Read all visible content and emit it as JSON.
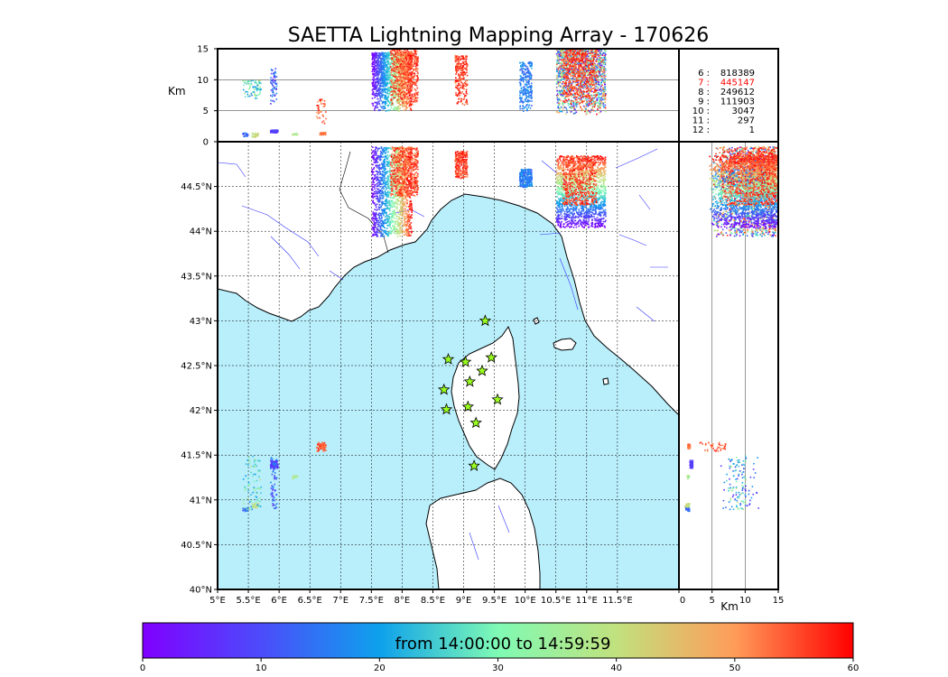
{
  "chart_data": {
    "type": "scatter",
    "title": "SAETTA Lightning Mapping Array - 170626",
    "map": {
      "lon_range": [
        5,
        12.5
      ],
      "lat_range": [
        40,
        45
      ],
      "x_ticks": [
        5,
        5.5,
        6,
        6.5,
        7,
        7.5,
        8,
        8.5,
        9,
        9.5,
        10,
        10.5,
        11,
        11.5
      ],
      "x_tick_labels": [
        "5°E",
        "5.5°E",
        "6°E",
        "6.5°E",
        "7°E",
        "7.5°E",
        "8°E",
        "8.5°E",
        "9°E",
        "9.5°E",
        "10°E",
        "10.5°E",
        "11°E",
        "11.5°E"
      ],
      "y_ticks": [
        40,
        40.5,
        41,
        41.5,
        42,
        42.5,
        43,
        43.5,
        44,
        44.5
      ],
      "y_tick_labels": [
        "40°N",
        "40.5°N",
        "41°N",
        "41.5°N",
        "42°N",
        "42.5°N",
        "43°N",
        "43.5°N",
        "44°N",
        "44.5°N"
      ],
      "grid": true,
      "sea_color": "#b9eefb"
    },
    "altitude_top": {
      "ylabel": "Km",
      "ylim": [
        0,
        15
      ],
      "y_ticks": [
        0,
        5,
        10,
        15
      ],
      "y_tick_labels": [
        "0",
        "5",
        "10",
        "15"
      ]
    },
    "altitude_side": {
      "xlabel": "Km",
      "xlim": [
        0,
        15
      ],
      "x_ticks": [
        0,
        5,
        10,
        15
      ],
      "x_tick_labels": [
        "0",
        "5",
        "10",
        "15"
      ]
    },
    "stations": [
      {
        "lon": 9.35,
        "lat": 43.0
      },
      {
        "lon": 8.75,
        "lat": 42.57
      },
      {
        "lon": 9.03,
        "lat": 42.54
      },
      {
        "lon": 9.45,
        "lat": 42.59
      },
      {
        "lon": 9.3,
        "lat": 42.44
      },
      {
        "lon": 9.1,
        "lat": 42.32
      },
      {
        "lon": 8.68,
        "lat": 42.23
      },
      {
        "lon": 9.55,
        "lat": 42.12
      },
      {
        "lon": 8.72,
        "lat": 42.01
      },
      {
        "lon": 9.07,
        "lat": 42.04
      },
      {
        "lon": 9.2,
        "lat": 41.86
      },
      {
        "lon": 9.17,
        "lat": 41.38
      }
    ],
    "station_counts": [
      {
        "label": "6  :",
        "value": "818389",
        "color": "#000000"
      },
      {
        "label": "7  :",
        "value": "445147",
        "color": "#ff0000"
      },
      {
        "label": "8  :",
        "value": "249612",
        "color": "#000000"
      },
      {
        "label": "9  :",
        "value": "111903",
        "color": "#000000"
      },
      {
        "label": "10  :",
        "value": "3047",
        "color": "#000000"
      },
      {
        "label": "11  :",
        "value": "297",
        "color": "#000000"
      },
      {
        "label": "12  :",
        "value": "1",
        "color": "#000000"
      }
    ],
    "clusters": [
      {
        "lon": [
          7.5,
          8.15
        ],
        "lat": [
          43.95,
          44.95
        ],
        "alt": [
          5,
          14.5
        ],
        "time": [
          0,
          60
        ],
        "gradient": "w2e",
        "n": 1500
      },
      {
        "lon": [
          7.8,
          8.25
        ],
        "lat": [
          44.4,
          44.95
        ],
        "alt": [
          6,
          15
        ],
        "time": [
          50,
          60
        ],
        "gradient": "none",
        "n": 600
      },
      {
        "lon": [
          8.85,
          9.05
        ],
        "lat": [
          44.6,
          44.9
        ],
        "alt": [
          6,
          14
        ],
        "time": [
          52,
          60
        ],
        "gradient": "none",
        "n": 250
      },
      {
        "lon": [
          9.9,
          10.1
        ],
        "lat": [
          44.5,
          44.7
        ],
        "alt": [
          5,
          13
        ],
        "time": [
          12,
          20
        ],
        "gradient": "none",
        "n": 250
      },
      {
        "lon": [
          10.5,
          11.3
        ],
        "lat": [
          44.05,
          44.85
        ],
        "alt": [
          4.5,
          15
        ],
        "time": [
          0,
          60
        ],
        "gradient": "s2n",
        "n": 1600
      },
      {
        "lon": [
          10.6,
          11.15
        ],
        "lat": [
          44.3,
          44.85
        ],
        "alt": [
          6,
          15
        ],
        "time": [
          52,
          60
        ],
        "gradient": "none",
        "n": 500
      },
      {
        "lon": [
          5.85,
          5.97
        ],
        "lat": [
          41.36,
          41.45
        ],
        "alt": [
          1.5,
          2
        ],
        "time": [
          6,
          10
        ],
        "gradient": "none",
        "n": 90
      },
      {
        "lon": [
          6.65,
          6.75
        ],
        "lat": [
          41.58,
          41.63
        ],
        "alt": [
          1.2,
          1.6
        ],
        "time": [
          50,
          55
        ],
        "gradient": "none",
        "n": 50
      },
      {
        "lon": [
          5.55,
          5.65
        ],
        "lat": [
          40.92,
          40.97
        ],
        "alt": [
          0.8,
          1.5
        ],
        "time": [
          35,
          45
        ],
        "gradient": "none",
        "n": 30
      },
      {
        "lon": [
          5.4,
          5.5
        ],
        "lat": [
          40.88,
          40.92
        ],
        "alt": [
          0.8,
          1.5
        ],
        "time": [
          10,
          16
        ],
        "gradient": "none",
        "n": 20
      },
      {
        "lon": [
          6.2,
          6.3
        ],
        "lat": [
          41.24,
          41.28
        ],
        "alt": [
          1,
          1.5
        ],
        "time": [
          35,
          40
        ],
        "gradient": "none",
        "n": 15
      },
      {
        "lon": [
          5.4,
          5.7
        ],
        "lat": [
          40.9,
          41.5
        ],
        "alt": [
          7,
          10
        ],
        "time": [
          15,
          40
        ],
        "gradient": "none",
        "n": 80
      },
      {
        "lon": [
          5.85,
          5.95
        ],
        "lat": [
          40.9,
          41.5
        ],
        "alt": [
          6,
          12
        ],
        "time": [
          5,
          20
        ],
        "gradient": "none",
        "n": 60
      },
      {
        "lon": [
          6.6,
          6.75
        ],
        "lat": [
          41.55,
          41.65
        ],
        "alt": [
          3,
          7
        ],
        "time": [
          48,
          58
        ],
        "gradient": "none",
        "n": 40
      }
    ],
    "colorbar": {
      "label": "from 14:00:00 to 14:59:59",
      "range": [
        0,
        60
      ],
      "ticks": [
        0,
        10,
        20,
        30,
        40,
        50,
        60
      ],
      "tick_labels": [
        "0",
        "10",
        "20",
        "30",
        "40",
        "50",
        "60"
      ],
      "colormap": "rainbow"
    }
  }
}
